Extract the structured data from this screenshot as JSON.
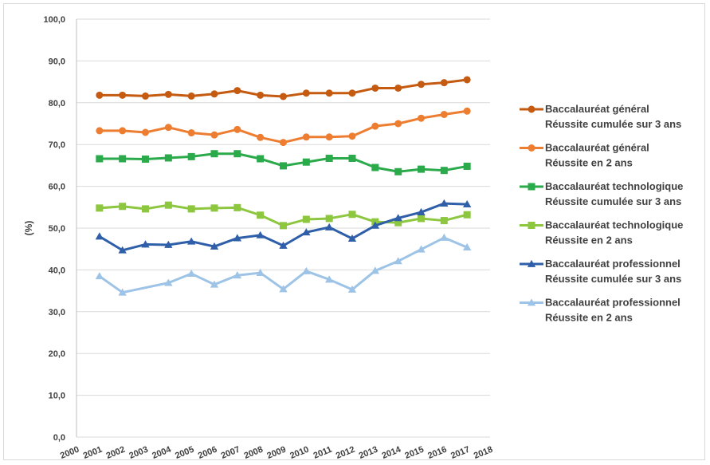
{
  "chart_data": {
    "type": "line",
    "ylabel": "(%)",
    "ylim": [
      0,
      100
    ],
    "y_ticks": [
      "0,0",
      "10,0",
      "20,0",
      "30,0",
      "40,0",
      "50,0",
      "60,0",
      "70,0",
      "80,0",
      "90,0",
      "100,0"
    ],
    "x_ticks": [
      "2000",
      "2001",
      "2002",
      "2003",
      "2004",
      "2005",
      "2006",
      "2007",
      "2008",
      "2009",
      "2010",
      "2011",
      "2012",
      "2013",
      "2014",
      "2015",
      "2016",
      "2017",
      "2018"
    ],
    "x": [
      2001,
      2002,
      2003,
      2004,
      2005,
      2006,
      2007,
      2008,
      2009,
      2010,
      2011,
      2012,
      2013,
      2014,
      2015,
      2016,
      2017
    ],
    "gridlines": "horizontal",
    "legend_position": "right",
    "series": [
      {
        "name_line1": "Baccalauréat général",
        "name_line2": "Réussite cumulée sur 3 ans",
        "color": "#c55a11",
        "marker": "circle",
        "values": [
          81.8,
          81.8,
          81.6,
          82.0,
          81.6,
          82.1,
          82.9,
          81.8,
          81.5,
          82.3,
          82.3,
          82.3,
          83.5,
          83.5,
          84.4,
          84.8,
          85.5
        ]
      },
      {
        "name_line1": "Baccalauréat général",
        "name_line2": "Réussite en 2 ans",
        "color": "#ed7d31",
        "marker": "circle",
        "values": [
          73.3,
          73.3,
          72.9,
          74.1,
          72.8,
          72.3,
          73.6,
          71.7,
          70.5,
          71.8,
          71.8,
          72.0,
          74.4,
          75.0,
          76.3,
          77.2,
          78.0
        ]
      },
      {
        "name_line1": "Baccalauréat technologique",
        "name_line2": "Réussite cumulée sur 3 ans",
        "color": "#2aaa4a",
        "marker": "square",
        "values": [
          66.6,
          66.6,
          66.5,
          66.8,
          67.1,
          67.8,
          67.8,
          66.6,
          64.9,
          65.8,
          66.7,
          66.7,
          64.5,
          63.5,
          64.1,
          63.8,
          64.8
        ]
      },
      {
        "name_line1": "Baccalauréat technologique",
        "name_line2": "Réussite en 2 ans",
        "color": "#8dc63f",
        "marker": "square",
        "values": [
          54.8,
          55.2,
          54.6,
          55.5,
          54.6,
          54.8,
          54.9,
          53.1,
          50.6,
          52.1,
          52.3,
          53.3,
          51.5,
          51.3,
          52.3,
          51.8,
          53.2
        ]
      },
      {
        "name_line1": "Baccalauréat professionnel",
        "name_line2": "Réussite cumulée sur 3 ans",
        "color": "#2e5fa8",
        "marker": "triangle",
        "values": [
          48.0,
          44.7,
          46.1,
          46.0,
          46.8,
          45.6,
          47.6,
          48.3,
          45.8,
          49.0,
          50.2,
          47.5,
          50.6,
          52.4,
          53.8,
          55.9,
          55.7
        ]
      },
      {
        "name_line1": "Baccalauréat professionnel",
        "name_line2": "Réussite en 2 ans",
        "color": "#9dc3e6",
        "marker": "triangle",
        "values": [
          38.5,
          34.6,
          null,
          36.9,
          39.1,
          36.5,
          38.7,
          39.3,
          35.4,
          39.7,
          37.7,
          35.3,
          39.8,
          42.1,
          44.9,
          47.7,
          45.4
        ]
      }
    ]
  }
}
